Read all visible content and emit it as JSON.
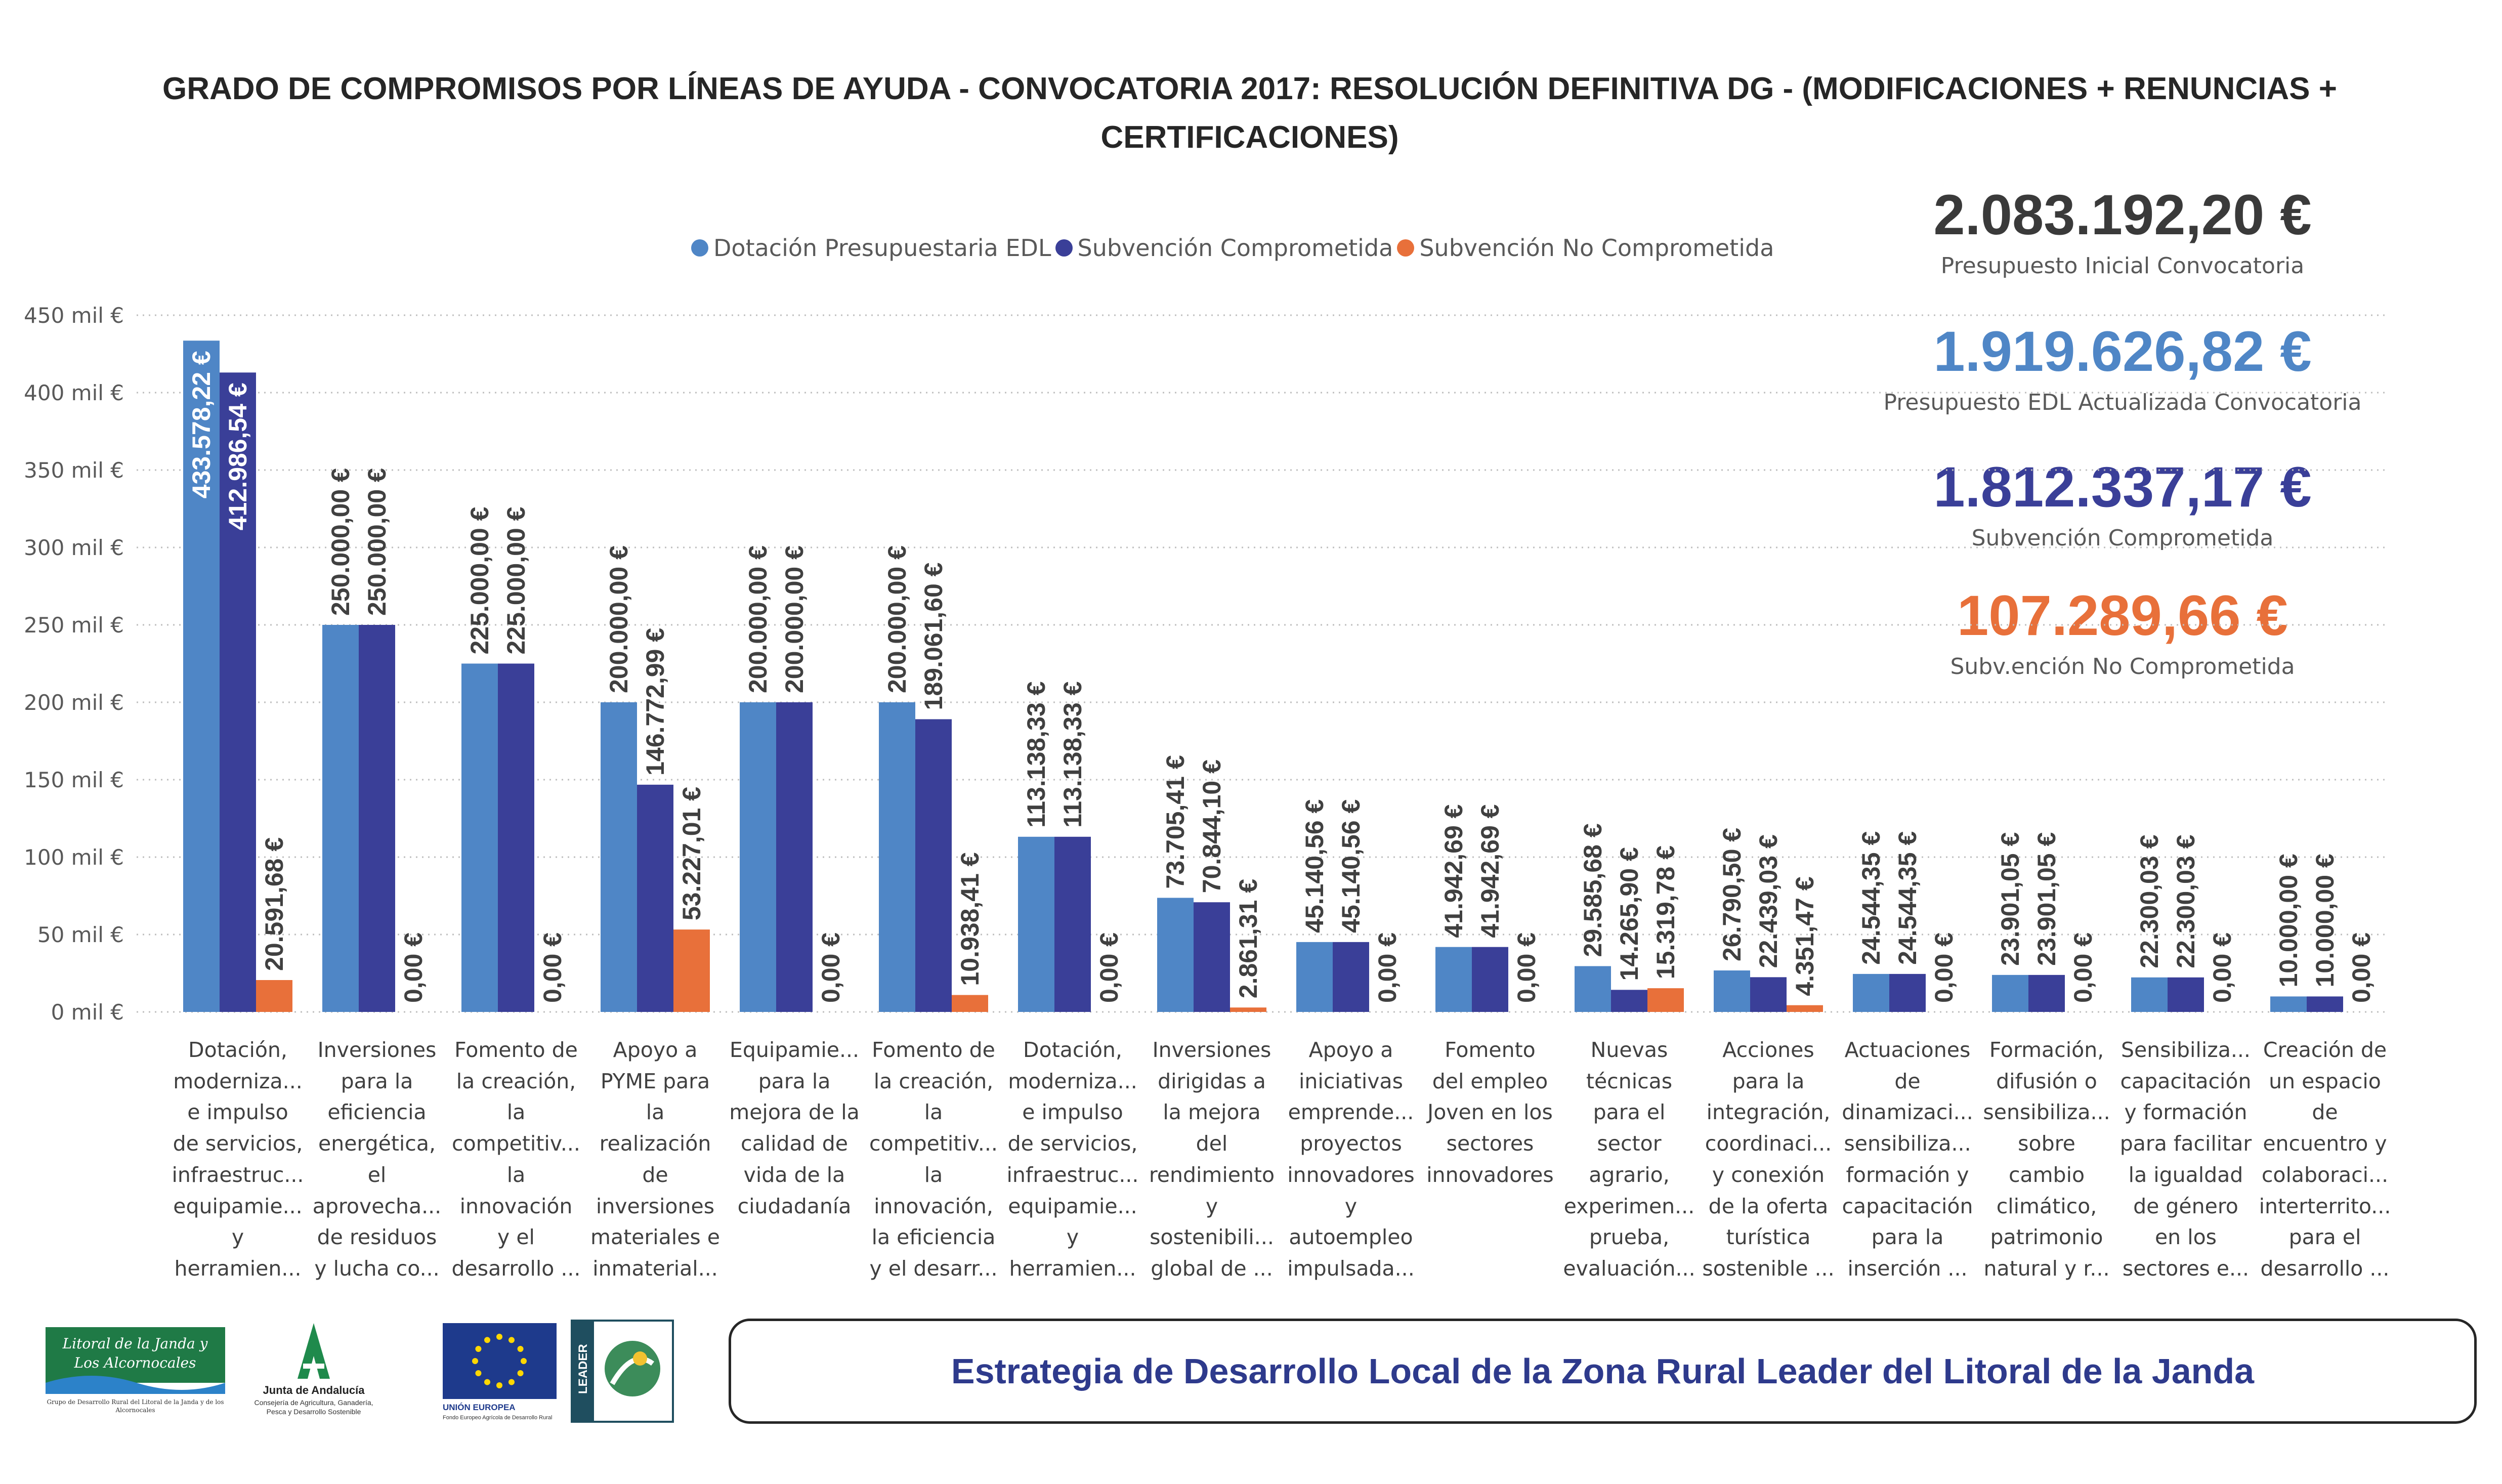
{
  "title": "GRADO DE COMPROMISOS POR LÍNEAS DE AYUDA - CONVOCATORIA 2017: RESOLUCIÓN DEFINITIVA DG - (MODIFICACIONES + RENUNCIAS + CERTIFICACIONES)",
  "colors": {
    "dotacion": "#4F86C6",
    "comprometida": "#3A3F98",
    "no_comprometida": "#E8703A",
    "grid": "#BFBFBF"
  },
  "legend": [
    {
      "label": "Dotación Presupuestaria EDL",
      "color": "#4F86C6"
    },
    {
      "label": "Subvención Comprometida",
      "color": "#3A3F98"
    },
    {
      "label": "Subvención No Comprometida",
      "color": "#E8703A"
    }
  ],
  "kpis": [
    {
      "value": "2.083.192,20 €",
      "label": "Presupuesto Inicial Convocatoria",
      "color": "#3A3A3A"
    },
    {
      "value": "1.919.626,82 €",
      "label": "Presupuesto EDL Actualizada Convocatoria",
      "color": "#4F86C6"
    },
    {
      "value": "1.812.337,17 €",
      "label": "Subvención Comprometida",
      "color": "#3A3F98"
    },
    {
      "value": "107.289,66 €",
      "label": "Subv.ención No Comprometida",
      "color": "#E8703A"
    }
  ],
  "chart_data": {
    "type": "bar",
    "y_ticks": [
      "0 mil €",
      "50 mil €",
      "100 mil €",
      "150 mil €",
      "200 mil €",
      "250 mil €",
      "300 mil €",
      "350 mil €",
      "400 mil €",
      "450 mil €"
    ],
    "ylim": [
      0,
      450000
    ],
    "grid": true,
    "legend_position": "top",
    "categories": [
      [
        "Dotación,",
        "moderniza...",
        "e impulso",
        "de servicios,",
        "infraestruc...",
        "equipamie...",
        "y",
        "herramien..."
      ],
      [
        "Inversiones",
        "para la",
        "eficiencia",
        "energética,",
        "el",
        "aprovecha...",
        "de residuos",
        "y lucha co..."
      ],
      [
        "Fomento de",
        "la creación,",
        "la",
        "competitiv...",
        "la",
        "innovación",
        "y el",
        "desarrollo ..."
      ],
      [
        "Apoyo a",
        "PYME para",
        "la",
        "realización",
        "de",
        "inversiones",
        "materiales e",
        "inmaterial..."
      ],
      [
        "Equipamie...",
        "para la",
        "mejora de la",
        "calidad de",
        "vida de la",
        "ciudadanía"
      ],
      [
        "Fomento de",
        "la creación,",
        "la",
        "competitiv...",
        "la",
        "innovación,",
        "la eficiencia",
        "y el desarr..."
      ],
      [
        "Dotación,",
        "moderniza...",
        "e impulso",
        "de servicios,",
        "infraestruc...",
        "equipamie...",
        "y",
        "herramien..."
      ],
      [
        "Inversiones",
        "dirigidas a",
        "la mejora",
        "del",
        "rendimiento",
        "y",
        "sostenibili...",
        "global de ..."
      ],
      [
        "Apoyo a",
        "iniciativas",
        "emprende...",
        "proyectos",
        "innovadores",
        "y",
        "autoempleo",
        "impulsada..."
      ],
      [
        "Fomento",
        "del empleo",
        "Joven en los",
        "sectores",
        "innovadores"
      ],
      [
        "Nuevas",
        "técnicas",
        "para el",
        "sector",
        "agrario,",
        "experimen...",
        "prueba,",
        "evaluación..."
      ],
      [
        "Acciones",
        "para la",
        "integración,",
        "coordinaci...",
        "y conexión",
        "de la oferta",
        "turística",
        "sostenible ..."
      ],
      [
        "Actuaciones",
        "de",
        "dinamizaci...",
        "sensibiliza...",
        "formación y",
        "capacitación",
        "para la",
        "inserción ..."
      ],
      [
        "Formación,",
        "difusión o",
        "sensibiliza...",
        "sobre",
        "cambio",
        "climático,",
        "patrimonio",
        "natural y r..."
      ],
      [
        "Sensibiliza...",
        "capacitación",
        "y formación",
        "para facilitar",
        "la igualdad",
        "de género",
        "en los",
        "sectores e..."
      ],
      [
        "Creación de",
        "un espacio",
        "de",
        "encuentro y",
        "colaboraci...",
        "interterrito...",
        "para el",
        "desarrollo ..."
      ]
    ],
    "series": [
      {
        "name": "Dotación Presupuestaria EDL",
        "values": [
          433578.22,
          250000.0,
          225000.0,
          200000.0,
          200000.0,
          200000.0,
          113138.33,
          73705.41,
          45140.56,
          41942.69,
          29585.68,
          26790.5,
          24544.35,
          23901.05,
          22300.03,
          10000.0
        ],
        "labels": [
          "433.578,22 €",
          "250.000,00 €",
          "225.000,00 €",
          "200.000,00 €",
          "200.000,00 €",
          "200.000,00 €",
          "113.138,33 €",
          "73.705,41 €",
          "45.140,56 €",
          "41.942,69 €",
          "29.585,68 €",
          "26.790,50 €",
          "24.544,35 €",
          "23.901,05 €",
          "22.300,03 €",
          "10.000,00 €"
        ]
      },
      {
        "name": "Subvención Comprometida",
        "values": [
          412986.54,
          250000.0,
          225000.0,
          146772.99,
          200000.0,
          189061.6,
          113138.33,
          70844.1,
          45140.56,
          41942.69,
          14265.9,
          22439.03,
          24544.35,
          23901.05,
          22300.03,
          10000.0
        ],
        "labels": [
          "412.986,54 €",
          "250.000,00 €",
          "225.000,00 €",
          "146.772,99 €",
          "200.000,00 €",
          "189.061,60 €",
          "113.138,33 €",
          "70.844,10 €",
          "45.140,56 €",
          "41.942,69 €",
          "14.265,90 €",
          "22.439,03 €",
          "24.544,35 €",
          "23.901,05 €",
          "22.300,03 €",
          "10.000,00 €"
        ]
      },
      {
        "name": "Subvención No Comprometida",
        "values": [
          20591.68,
          0,
          0,
          53227.01,
          0,
          10938.41,
          0,
          2861.31,
          0,
          0,
          15319.78,
          4351.47,
          0,
          0,
          0,
          0
        ],
        "labels": [
          "20.591,68 €",
          "0,00 €",
          "0,00 €",
          "53.227,01 €",
          "0,00 €",
          "10.938,41 €",
          "0,00 €",
          "2.861,31 €",
          "0,00 €",
          "0,00 €",
          "15.319,78 €",
          "4.351,47 €",
          "0,00 €",
          "0,00 €",
          "0,00 €",
          "0,00 €"
        ]
      }
    ]
  },
  "logos": {
    "litoral_line1": "Litoral de la Janda y",
    "litoral_line2": "Los Alcornocales",
    "litoral_sub": "Grupo de Desarrollo Rural del Litoral de la Janda y de los Alcornocales",
    "junta_name": "Junta de Andalucía",
    "junta_sub1": "Consejería de Agricultura, Ganadería,",
    "junta_sub2": "Pesca y Desarrollo Sostenible",
    "ue_name": "UNIÓN EUROPEA",
    "ue_sub": "Fondo Europeo Agrícola de Desarrollo Rural",
    "leader_name": "LEADER"
  },
  "footer": "Estrategia de Desarrollo Local de la Zona Rural Leader del Litoral de la Janda"
}
